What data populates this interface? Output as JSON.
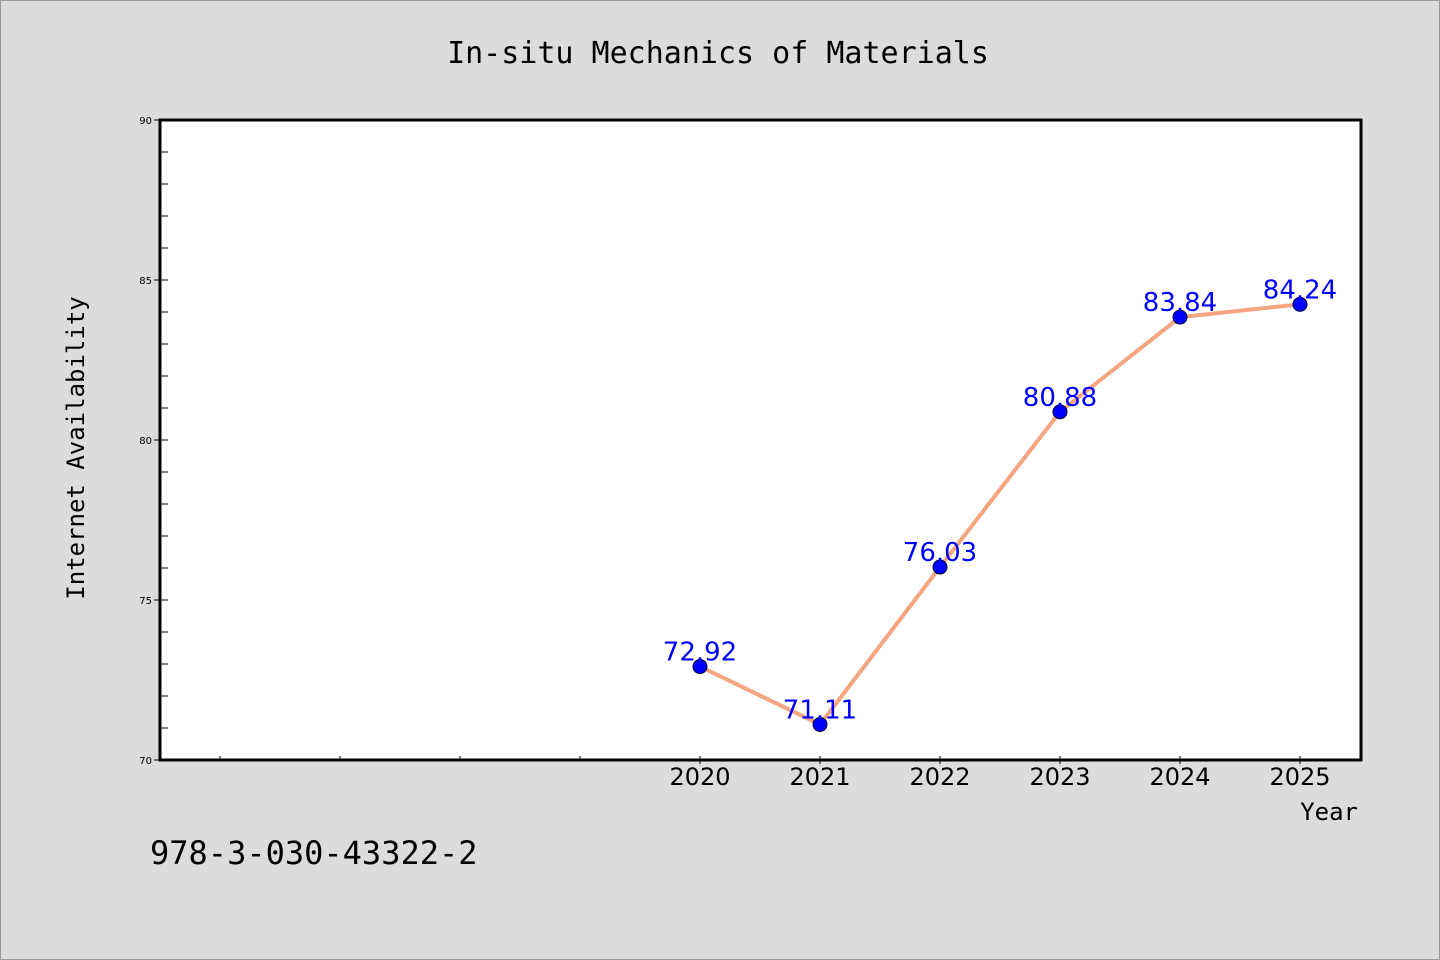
{
  "chart_data": {
    "type": "line",
    "title": "In-situ Mechanics of Materials",
    "xlabel": "Year",
    "ylabel": "Internet Availability",
    "x": [
      "2020",
      "2021",
      "2022",
      "2023",
      "2024",
      "2025"
    ],
    "series": [
      {
        "values": [
          72.92,
          71.11,
          76.03,
          80.88,
          83.84,
          84.24
        ]
      }
    ],
    "data_labels": [
      "72.92",
      "71.11",
      "76.03",
      "80.88",
      "83.84",
      "84.24"
    ],
    "ylim": [
      70,
      90
    ],
    "yticks": [
      70,
      75,
      80,
      85,
      90
    ],
    "grid": false,
    "line_color": "#f4a582",
    "marker_color": "#0000ff",
    "label_color": "#0000ff",
    "background_color": "#dcdcdc",
    "plot_background_color": "#ffffff"
  },
  "footer": {
    "text": "978-3-030-43322-2"
  }
}
